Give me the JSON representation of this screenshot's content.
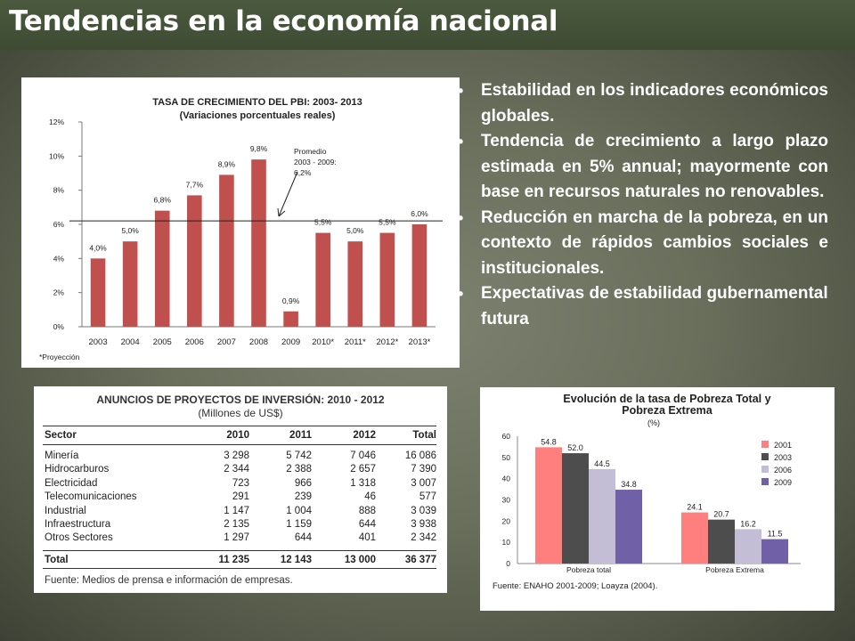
{
  "slide": {
    "title": "Tendencias en la economía nacional",
    "bullets": [
      "Estabilidad en los indicadores económicos globales.",
      "Tendencia de crecimiento a largo plazo estimada en 5% annual; mayormente con base en recursos naturales no renovables.",
      "Reducción en marcha de la pobreza, en un contexto de rápidos cambios sociales e institucionales.",
      "Expectativas  de estabilidad gubernamental futura"
    ]
  },
  "chart_data": [
    {
      "type": "bar",
      "title": "TASA DE CRECIMIENTO  DEL PBI: 2003- 2013",
      "subtitle": "(Variaciones porcentuales reales)",
      "categories": [
        "2003",
        "2004",
        "2005",
        "2006",
        "2007",
        "2008",
        "2009",
        "2010*",
        "2011*",
        "2012*",
        "2013*"
      ],
      "values": [
        4.0,
        5.0,
        6.8,
        7.7,
        8.9,
        9.8,
        0.9,
        5.5,
        5.0,
        5.5,
        6.0
      ],
      "labels": [
        "4,0%",
        "5,0%",
        "6,8%",
        "7,7%",
        "8,9%",
        "9,8%",
        "0,9%",
        "5,5%",
        "5,0%",
        "5,5%",
        "6,0%"
      ],
      "ylim": [
        0,
        12
      ],
      "yticks": [
        "0%",
        "2%",
        "4%",
        "6%",
        "8%",
        "10%",
        "12%"
      ],
      "average_line": 6.2,
      "annotation": [
        "Promedio",
        "2003 - 2009:",
        "6,2%"
      ],
      "footnote": "*Proyección",
      "bar_color": "#c0504d"
    },
    {
      "type": "bar",
      "title": "Evolución de la tasa de Pobreza Total y",
      "title2": "Pobreza Extrema",
      "unit": "(%)",
      "categories": [
        "Pobreza total",
        "Pobreza Extrema"
      ],
      "series": [
        {
          "name": "2001",
          "values": [
            54.8,
            24.1
          ],
          "labels": [
            "54.8",
            "24.1"
          ],
          "color": "#ff7f7f"
        },
        {
          "name": "2003",
          "values": [
            52.0,
            20.7
          ],
          "labels": [
            "52.0",
            "20.7"
          ],
          "color": "#4d4d4d"
        },
        {
          "name": "2006",
          "values": [
            44.5,
            16.2
          ],
          "labels": [
            "44.5",
            "16.2"
          ],
          "color": "#c3bdd6"
        },
        {
          "name": "2009",
          "values": [
            34.8,
            11.5
          ],
          "labels": [
            "34.8",
            "11.5"
          ],
          "color": "#7060a8"
        }
      ],
      "ylim": [
        0,
        60
      ],
      "yticks": [
        "0",
        "10",
        "20",
        "30",
        "40",
        "50",
        "60"
      ],
      "source": "Fuente: ENAHO 2001-2009; Loayza (2004)."
    }
  ],
  "investment_table": {
    "title": "ANUNCIOS DE PROYECTOS DE INVERSIÓN: 2010 - 2012",
    "subtitle": "(Millones de US$)",
    "headers": [
      "Sector",
      "2010",
      "2011",
      "2012",
      "Total"
    ],
    "rows": [
      [
        "Minería",
        "3 298",
        "5 742",
        "7 046",
        "16 086"
      ],
      [
        "Hidrocarburos",
        "2 344",
        "2 388",
        "2 657",
        "7 390"
      ],
      [
        "Electricidad",
        "723",
        "966",
        "1 318",
        "3 007"
      ],
      [
        "Telecomunicaciones",
        "291",
        "239",
        "46",
        "577"
      ],
      [
        "Industrial",
        "1 147",
        "1 004",
        "888",
        "3 039"
      ],
      [
        "Infraestructura",
        "2 135",
        "1 159",
        "644",
        "3 938"
      ],
      [
        "Otros Sectores",
        "1 297",
        "644",
        "401",
        "2 342"
      ]
    ],
    "total": [
      "Total",
      "11 235",
      "12 143",
      "13 000",
      "36 377"
    ],
    "source": "Fuente: Medios de prensa e información de empresas."
  }
}
